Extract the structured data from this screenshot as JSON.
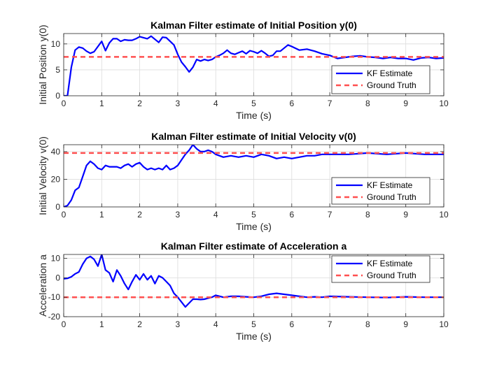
{
  "chart_data": [
    {
      "type": "line",
      "title": "Kalman Filter estimate of Initial Position y(0)",
      "xlabel": "Time (s)",
      "ylabel": "Initial Position y(0)",
      "xlim": [
        0,
        10
      ],
      "ylim": [
        0,
        12
      ],
      "xticks": [
        0,
        1,
        2,
        3,
        4,
        5,
        6,
        7,
        8,
        9,
        10
      ],
      "yticks": [
        0,
        5,
        10
      ],
      "grid": true,
      "legend": "bottom-right",
      "series": [
        {
          "name": "KF Estimate",
          "color": "#0000ff",
          "style": "solid",
          "x": [
            0,
            0.1,
            0.2,
            0.3,
            0.4,
            0.5,
            0.6,
            0.7,
            0.8,
            0.9,
            1.0,
            1.1,
            1.2,
            1.3,
            1.4,
            1.5,
            1.6,
            1.7,
            1.8,
            1.9,
            2.0,
            2.1,
            2.2,
            2.3,
            2.4,
            2.5,
            2.6,
            2.7,
            2.8,
            2.9,
            3.0,
            3.1,
            3.2,
            3.3,
            3.4,
            3.5,
            3.6,
            3.7,
            3.8,
            3.9,
            4.0,
            4.1,
            4.2,
            4.3,
            4.4,
            4.5,
            4.6,
            4.7,
            4.8,
            4.9,
            5.0,
            5.1,
            5.2,
            5.3,
            5.4,
            5.5,
            5.6,
            5.7,
            5.8,
            5.9,
            6.0,
            6.2,
            6.4,
            6.6,
            6.8,
            7.0,
            7.2,
            7.4,
            7.6,
            7.8,
            8.0,
            8.2,
            8.4,
            8.6,
            8.8,
            9.0,
            9.2,
            9.4,
            9.6,
            9.8,
            10.0
          ],
          "values": [
            0,
            0,
            5.5,
            8.8,
            9.4,
            9.2,
            8.6,
            8.2,
            8.5,
            9.5,
            10.5,
            8.7,
            10.2,
            11.0,
            11.0,
            10.5,
            10.8,
            10.7,
            10.7,
            11.0,
            11.4,
            11.2,
            11.0,
            11.5,
            10.9,
            10.3,
            11.3,
            11.2,
            10.5,
            9.8,
            8.0,
            6.5,
            5.6,
            4.6,
            5.5,
            7.0,
            6.7,
            7.0,
            6.8,
            7.0,
            7.5,
            7.8,
            8.2,
            8.8,
            8.2,
            8.0,
            8.3,
            8.6,
            8.1,
            8.7,
            8.5,
            8.2,
            8.7,
            8.2,
            7.6,
            7.8,
            8.6,
            8.6,
            9.2,
            9.8,
            9.5,
            8.8,
            9.0,
            8.6,
            8.1,
            7.8,
            7.2,
            7.4,
            7.6,
            7.7,
            7.5,
            7.4,
            7.2,
            7.4,
            7.2,
            7.2,
            6.9,
            7.3,
            7.4,
            7.2,
            7.3
          ]
        },
        {
          "name": "Ground Truth",
          "color": "#ff5050",
          "style": "dashed",
          "x": [
            0,
            10
          ],
          "values": [
            7.5,
            7.5
          ]
        }
      ]
    },
    {
      "type": "line",
      "title": "Kalman Filter estimate of Initial Velocity v(0)",
      "xlabel": "Time (s)",
      "ylabel": "Initial Velocity v(0)",
      "xlim": [
        0,
        10
      ],
      "ylim": [
        0,
        45
      ],
      "xticks": [
        0,
        1,
        2,
        3,
        4,
        5,
        6,
        7,
        8,
        9,
        10
      ],
      "yticks": [
        0,
        20,
        40
      ],
      "grid": true,
      "legend": "bottom-right",
      "series": [
        {
          "name": "KF Estimate",
          "color": "#0000ff",
          "style": "solid",
          "x": [
            0,
            0.1,
            0.2,
            0.3,
            0.4,
            0.5,
            0.6,
            0.7,
            0.8,
            0.9,
            1.0,
            1.1,
            1.2,
            1.3,
            1.4,
            1.5,
            1.6,
            1.7,
            1.8,
            1.9,
            2.0,
            2.1,
            2.2,
            2.3,
            2.4,
            2.5,
            2.6,
            2.7,
            2.8,
            2.9,
            3.0,
            3.1,
            3.2,
            3.3,
            3.4,
            3.5,
            3.6,
            3.7,
            3.8,
            3.9,
            4.0,
            4.2,
            4.4,
            4.6,
            4.8,
            5.0,
            5.2,
            5.4,
            5.6,
            5.8,
            6.0,
            6.2,
            6.4,
            6.6,
            6.8,
            7.0,
            7.5,
            8.0,
            8.5,
            9.0,
            9.5,
            10.0
          ],
          "values": [
            0,
            1,
            5,
            12,
            14,
            22,
            30,
            33,
            31,
            28,
            27,
            30,
            29,
            29,
            29,
            28,
            30,
            31,
            29,
            31,
            32,
            29,
            27,
            28,
            27,
            28,
            27,
            30,
            27,
            28,
            30,
            34,
            38,
            41,
            45,
            42,
            40,
            40,
            41,
            40,
            38,
            36,
            37,
            36,
            37,
            36,
            38,
            37,
            35,
            36,
            35,
            36,
            37,
            37,
            38,
            38,
            38,
            39,
            38,
            39,
            38,
            38
          ]
        },
        {
          "name": "Ground Truth",
          "color": "#ff5050",
          "style": "dashed",
          "x": [
            0,
            10
          ],
          "values": [
            39,
            39
          ]
        }
      ]
    },
    {
      "type": "line",
      "title": "Kalman Filter estimate of Acceleration a",
      "xlabel": "Time (s)",
      "ylabel": "Acceleration a",
      "xlim": [
        0,
        10
      ],
      "ylim": [
        -20,
        12
      ],
      "xticks": [
        0,
        1,
        2,
        3,
        4,
        5,
        6,
        7,
        8,
        9,
        10
      ],
      "yticks": [
        -20,
        -10,
        0,
        10
      ],
      "grid": true,
      "legend": "top-right",
      "series": [
        {
          "name": "KF Estimate",
          "color": "#0000ff",
          "style": "solid",
          "x": [
            0,
            0.1,
            0.2,
            0.3,
            0.4,
            0.5,
            0.6,
            0.7,
            0.8,
            0.9,
            1.0,
            1.1,
            1.2,
            1.3,
            1.4,
            1.5,
            1.6,
            1.7,
            1.8,
            1.9,
            2.0,
            2.1,
            2.2,
            2.3,
            2.4,
            2.5,
            2.6,
            2.7,
            2.8,
            2.9,
            3.0,
            3.1,
            3.2,
            3.3,
            3.4,
            3.5,
            3.6,
            3.7,
            3.8,
            3.9,
            4.0,
            4.2,
            4.4,
            4.6,
            4.8,
            5.0,
            5.2,
            5.4,
            5.6,
            5.8,
            6.0,
            6.2,
            6.4,
            6.6,
            6.8,
            7.0,
            7.5,
            8.0,
            8.5,
            9.0,
            9.5,
            10.0
          ],
          "values": [
            -0.5,
            -0.3,
            0.5,
            2,
            3,
            7,
            10,
            11,
            9.5,
            6,
            12,
            4,
            2.5,
            -2,
            4,
            1,
            -3,
            -6,
            -2,
            1.5,
            -1,
            2,
            -1,
            1,
            -3,
            1,
            0,
            -2,
            -4,
            -8,
            -10,
            -12.5,
            -15,
            -13,
            -11,
            -11,
            -11.2,
            -11,
            -10.5,
            -10,
            -9,
            -10,
            -9.5,
            -9.5,
            -9.8,
            -10,
            -9.5,
            -8.5,
            -8,
            -8.5,
            -9,
            -9.5,
            -10,
            -9.8,
            -10,
            -9.5,
            -9.8,
            -10,
            -10.2,
            -9.8,
            -10,
            -10
          ]
        },
        {
          "name": "Ground Truth",
          "color": "#ff5050",
          "style": "dashed",
          "x": [
            0,
            10
          ],
          "values": [
            -10,
            -10
          ]
        }
      ]
    }
  ]
}
